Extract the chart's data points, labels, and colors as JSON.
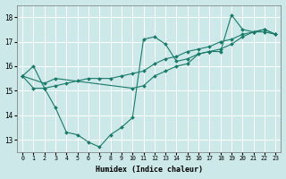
{
  "xlabel": "Humidex (Indice chaleur)",
  "bg_color": "#cce8e8",
  "grid_color": "#ffffff",
  "line_color": "#1a7a6a",
  "marker_color": "#1a7a6a",
  "series": [
    {
      "x": [
        0,
        1,
        2,
        3,
        4,
        5,
        6,
        7,
        8,
        9,
        10,
        11,
        12,
        13,
        14,
        15,
        16,
        17,
        18,
        19,
        20,
        21,
        22,
        23
      ],
      "y": [
        15.6,
        16.0,
        15.1,
        14.3,
        13.3,
        13.2,
        12.9,
        12.7,
        13.2,
        13.5,
        13.9,
        17.1,
        17.2,
        16.9,
        16.2,
        16.3,
        16.5,
        16.6,
        16.6,
        18.1,
        17.5,
        17.4,
        17.4,
        17.3
      ]
    },
    {
      "x": [
        0,
        1,
        2,
        3,
        4,
        5,
        6,
        7,
        8,
        9,
        10,
        11,
        12,
        13,
        14,
        15,
        16,
        17,
        18,
        19,
        20,
        21,
        22,
        23
      ],
      "y": [
        15.6,
        15.1,
        15.1,
        15.2,
        15.3,
        15.4,
        15.5,
        15.5,
        15.5,
        15.6,
        15.7,
        15.8,
        16.1,
        16.3,
        16.4,
        16.6,
        16.7,
        16.8,
        17.0,
        17.1,
        17.3,
        17.4,
        17.5,
        17.3
      ]
    },
    {
      "x": [
        0,
        2,
        3,
        10,
        11,
        12,
        13,
        14,
        15,
        16,
        17,
        18,
        19,
        20,
        21,
        22,
        23
      ],
      "y": [
        15.6,
        15.3,
        15.5,
        15.1,
        15.2,
        15.6,
        15.8,
        16.0,
        16.1,
        16.5,
        16.6,
        16.7,
        16.9,
        17.2,
        17.4,
        17.5,
        17.3
      ]
    }
  ],
  "xlim": [
    -0.5,
    23.5
  ],
  "ylim": [
    12.5,
    18.5
  ],
  "yticks": [
    13,
    14,
    15,
    16,
    17,
    18
  ],
  "xticks": [
    0,
    1,
    2,
    3,
    4,
    5,
    6,
    7,
    8,
    9,
    10,
    11,
    12,
    13,
    14,
    15,
    16,
    17,
    18,
    19,
    20,
    21,
    22,
    23
  ]
}
